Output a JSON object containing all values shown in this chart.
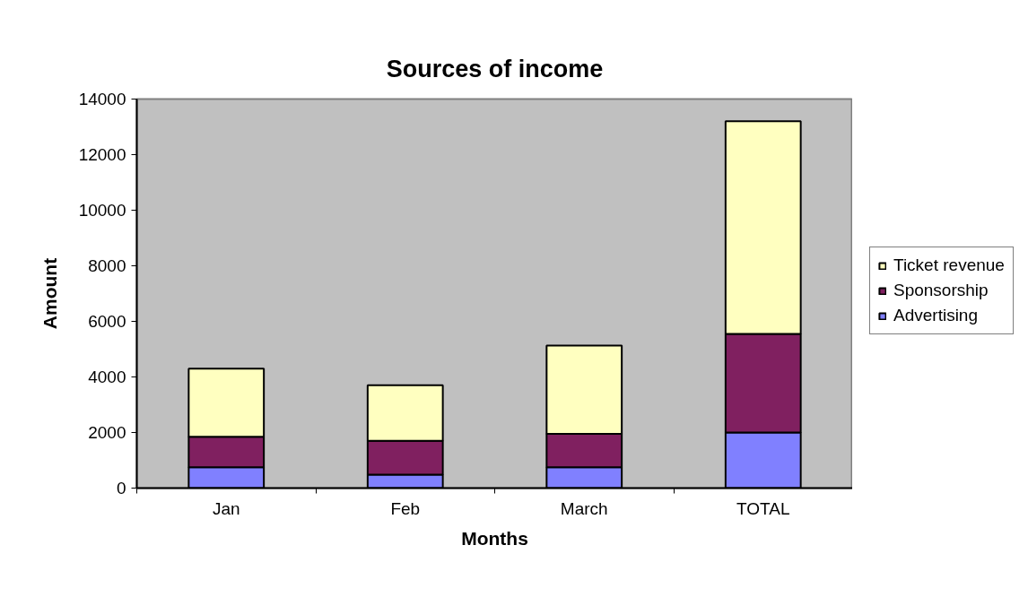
{
  "chart_data": {
    "type": "bar",
    "title": "Sources of income",
    "xlabel": "Months",
    "ylabel": "Amount",
    "categories": [
      "Jan",
      "Feb",
      "March",
      "TOTAL"
    ],
    "stacked": true,
    "series": [
      {
        "name": "Advertising",
        "color": "#8080ff",
        "values": [
          750,
          480,
          750,
          2000
        ]
      },
      {
        "name": "Sponsorship",
        "color": "#802060",
        "values": [
          1100,
          1220,
          1200,
          3550
        ]
      },
      {
        "name": "Ticket revenue",
        "color": "#ffffc0",
        "values": [
          2450,
          2000,
          3180,
          7650
        ]
      }
    ],
    "ylim": [
      0,
      14000
    ],
    "yticks": [
      0,
      2000,
      4000,
      6000,
      8000,
      10000,
      12000,
      14000
    ],
    "legend": "right"
  }
}
